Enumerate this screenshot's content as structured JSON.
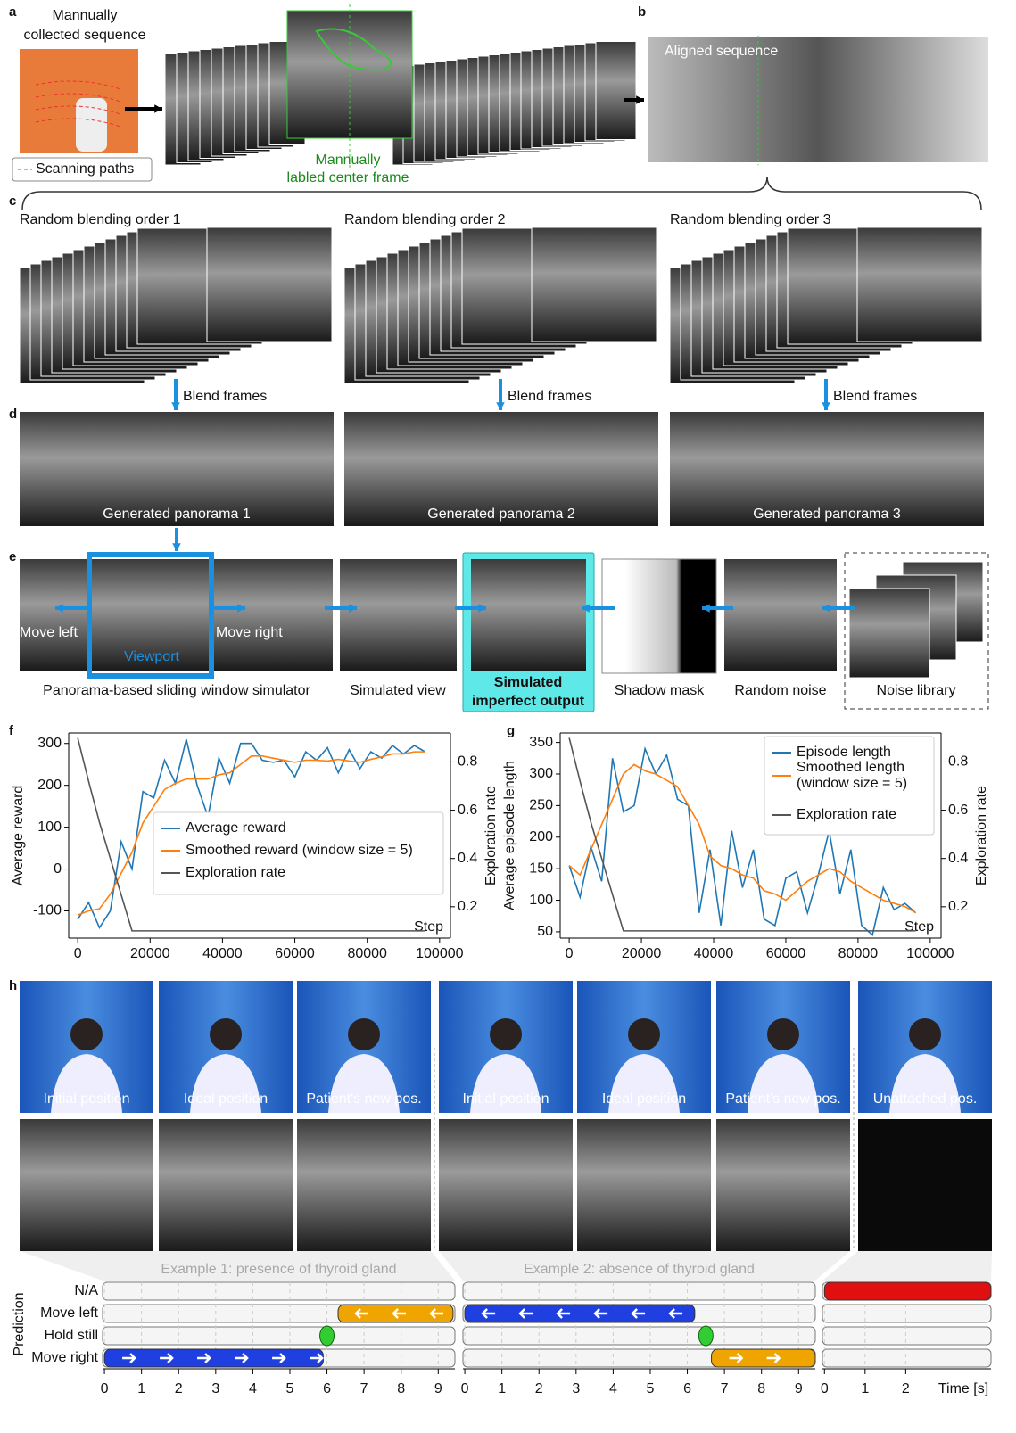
{
  "figure": {
    "a": {
      "label": "a",
      "title_line1": "Mannually",
      "title_line2": "collected sequence",
      "legend": "Scanning paths",
      "center_line1": "Mannually",
      "center_line2": "labled center frame"
    },
    "b": {
      "label": "b",
      "caption": "Aligned sequence"
    },
    "c": {
      "label": "c",
      "orders": [
        "Random blending order 1",
        "Random blending order 2",
        "Random blending order 3"
      ],
      "arrow": "Blend frames"
    },
    "d": {
      "label": "d",
      "panoramas": [
        "Generated panorama 1",
        "Generated panorama 2",
        "Generated panorama 3"
      ]
    },
    "e": {
      "label": "e",
      "move_left": "Move left",
      "viewport": "Viewport",
      "move_right": "Move right",
      "captions": [
        "Panorama-based sliding window simulator",
        "Simulated view",
        "Simulated",
        "imperfect output",
        "Shadow mask",
        "Random noise",
        "Noise library"
      ]
    },
    "f": {
      "label": "f"
    },
    "g": {
      "label": "g"
    },
    "h": {
      "label": "h",
      "photo_captions": [
        "Initial position",
        "Ideal position",
        "Patient's new pos.",
        "Initial position",
        "Ideal position",
        "Patient's new pos.",
        "Unattached pos."
      ]
    }
  },
  "chart_data": [
    {
      "type": "line",
      "ylabel": "Average reward",
      "y2label": "Exploration rate",
      "xlabel": "Step",
      "legend": "center right",
      "x": [
        0,
        3000,
        6000,
        9000,
        12000,
        15000,
        18000,
        21000,
        24000,
        27000,
        30000,
        33000,
        36000,
        39000,
        42000,
        45000,
        48000,
        51000,
        54000,
        57000,
        60000,
        63000,
        66000,
        69000,
        72000,
        75000,
        78000,
        81000,
        84000,
        87000,
        90000,
        93000,
        96000
      ],
      "series": [
        {
          "name": "Average reward",
          "color": "#1f77b4",
          "values": [
            -120,
            -80,
            -140,
            -100,
            65,
            0,
            185,
            170,
            260,
            205,
            310,
            200,
            125,
            265,
            205,
            300,
            300,
            260,
            255,
            260,
            220,
            280,
            260,
            290,
            230,
            285,
            240,
            280,
            265,
            295,
            275,
            295,
            280
          ]
        },
        {
          "name": "Smoothed reward (window size = 5)",
          "color": "#ff7f0e",
          "values": [
            -110,
            -100,
            -95,
            -60,
            -10,
            40,
            110,
            150,
            190,
            205,
            215,
            215,
            215,
            225,
            230,
            250,
            270,
            270,
            265,
            260,
            255,
            260,
            260,
            258,
            262,
            258,
            255,
            262,
            268,
            275,
            275,
            280,
            280
          ]
        },
        {
          "name": "Exploration rate",
          "color": "#555555",
          "axis": "y2",
          "values": [
            0.9,
            0.72,
            0.55,
            0.4,
            0.25,
            0.1,
            0.1,
            0.1,
            0.1,
            0.1,
            0.1,
            0.1,
            0.1,
            0.1,
            0.1,
            0.1,
            0.1,
            0.1,
            0.1,
            0.1,
            0.1,
            0.1,
            0.1,
            0.1,
            0.1,
            0.1,
            0.1,
            0.1,
            0.1,
            0.1,
            0.1,
            0.1,
            0.1
          ]
        }
      ],
      "xlim": [
        -2500,
        103000
      ],
      "xticks": [
        0,
        20000,
        40000,
        60000,
        80000,
        100000
      ],
      "ylim": [
        -165,
        325
      ],
      "yticks": [
        -100,
        0,
        100,
        200,
        300
      ],
      "y2lim": [
        0.07,
        0.92
      ],
      "y2ticks": [
        0.2,
        0.4,
        0.6,
        0.8
      ]
    },
    {
      "type": "line",
      "ylabel": "Average episode length",
      "y2label": "Exploration rate",
      "xlabel": "Step",
      "legend": "upper right",
      "x": [
        0,
        3000,
        6000,
        9000,
        12000,
        15000,
        18000,
        21000,
        24000,
        27000,
        30000,
        33000,
        36000,
        39000,
        42000,
        45000,
        48000,
        51000,
        54000,
        57000,
        60000,
        63000,
        66000,
        69000,
        72000,
        75000,
        78000,
        81000,
        84000,
        87000,
        90000,
        93000,
        96000
      ],
      "series": [
        {
          "name": "Episode length",
          "color": "#1f77b4",
          "values": [
            155,
            105,
            185,
            130,
            325,
            240,
            250,
            340,
            300,
            330,
            260,
            250,
            80,
            180,
            60,
            210,
            120,
            180,
            70,
            60,
            135,
            145,
            80,
            140,
            210,
            110,
            180,
            60,
            45,
            120,
            85,
            95,
            80
          ]
        },
        {
          "name": "Smoothed length (window size = 5)",
          "color": "#ff7f0e",
          "values": [
            155,
            140,
            180,
            220,
            260,
            300,
            315,
            305,
            300,
            290,
            280,
            250,
            220,
            170,
            155,
            150,
            140,
            135,
            115,
            110,
            100,
            115,
            130,
            140,
            150,
            145,
            130,
            120,
            110,
            100,
            95,
            90,
            80
          ]
        },
        {
          "name": "Exploration rate",
          "color": "#555555",
          "axis": "y2",
          "values": [
            0.9,
            0.72,
            0.55,
            0.4,
            0.25,
            0.1,
            0.1,
            0.1,
            0.1,
            0.1,
            0.1,
            0.1,
            0.1,
            0.1,
            0.1,
            0.1,
            0.1,
            0.1,
            0.1,
            0.1,
            0.1,
            0.1,
            0.1,
            0.1,
            0.1,
            0.1,
            0.1,
            0.1,
            0.1,
            0.1,
            0.1,
            0.1,
            0.1
          ]
        }
      ],
      "xlim": [
        -2500,
        103000
      ],
      "xticks": [
        0,
        20000,
        40000,
        60000,
        80000,
        100000
      ],
      "ylim": [
        40,
        365
      ],
      "yticks": [
        50,
        100,
        150,
        200,
        250,
        300,
        350
      ],
      "y2lim": [
        0.07,
        0.92
      ],
      "y2ticks": [
        0.2,
        0.4,
        0.6,
        0.8
      ]
    }
  ],
  "timeline": {
    "ylabel": "Prediction",
    "xlabel": "Time [s]",
    "rows": [
      "N/A",
      "Move left",
      "Hold still",
      "Move right"
    ],
    "groups": [
      {
        "title": "Example 1: presence of thyroid gland",
        "xlim": [
          -0.05,
          9.45
        ],
        "xticks": [
          0,
          1,
          2,
          3,
          4,
          5,
          6,
          7,
          8,
          9
        ],
        "segments": [
          {
            "row": "Move right",
            "start": 0,
            "end": 5.9,
            "color": "#1f3fe0"
          },
          {
            "row": "Hold still",
            "start": 6.0,
            "end": 6.0,
            "color": "#33cc33"
          },
          {
            "row": "Move left",
            "start": 6.3,
            "end": 9.4,
            "color": "#f0a400"
          }
        ]
      },
      {
        "title": "Example 2:  absence of thyroid gland",
        "xlim": [
          -0.05,
          9.45
        ],
        "xticks": [
          0,
          1,
          2,
          3,
          4,
          5,
          6,
          7,
          8,
          9
        ],
        "segments": [
          {
            "row": "Move left",
            "start": 0,
            "end": 6.2,
            "color": "#1f3fe0"
          },
          {
            "row": "Hold still",
            "start": 6.5,
            "end": 6.5,
            "color": "#33cc33"
          },
          {
            "row": "Move right",
            "start": 6.65,
            "end": 9.45,
            "color": "#f0a400"
          }
        ]
      },
      {
        "xlim": [
          -0.05,
          4.1
        ],
        "xticks": [
          0,
          1,
          2
        ],
        "segments": [
          {
            "row": "N/A",
            "start": 0,
            "end": 4.1,
            "color": "#e01010"
          }
        ]
      }
    ]
  }
}
